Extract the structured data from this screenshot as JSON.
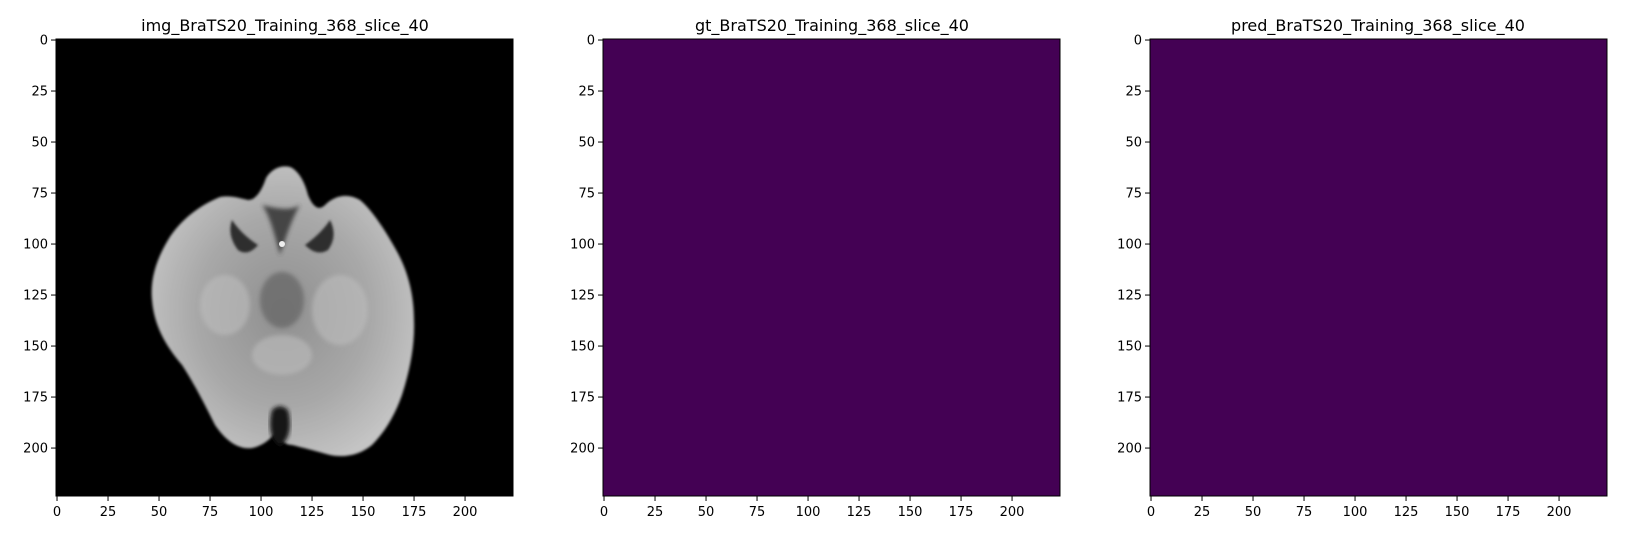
{
  "colors": {
    "background": "#ffffff",
    "mask_fill": "#440154",
    "image_fill": "#000000",
    "axis": "#000000"
  },
  "chart_data": [
    {
      "type": "heatmap",
      "title": "img_BraTS20_Training_368_slice_40",
      "colormap": "gray",
      "content": "grayscale axial brain MRI slice on black background",
      "xlim": [
        0,
        224
      ],
      "ylim": [
        224,
        0
      ],
      "xticks": [
        0,
        25,
        50,
        75,
        100,
        125,
        150,
        175,
        200
      ],
      "yticks": [
        0,
        25,
        50,
        75,
        100,
        125,
        150,
        175,
        200
      ],
      "xlabel": "",
      "ylabel": "",
      "grid": false
    },
    {
      "type": "heatmap",
      "title": "gt_BraTS20_Training_368_slice_40",
      "colormap": "viridis",
      "uniform_value": 0,
      "xlim": [
        0,
        224
      ],
      "ylim": [
        224,
        0
      ],
      "xticks": [
        0,
        25,
        50,
        75,
        100,
        125,
        150,
        175,
        200
      ],
      "yticks": [
        0,
        25,
        50,
        75,
        100,
        125,
        150,
        175,
        200
      ],
      "xlabel": "",
      "ylabel": "",
      "grid": false
    },
    {
      "type": "heatmap",
      "title": "pred_BraTS20_Training_368_slice_40",
      "colormap": "viridis",
      "uniform_value": 0,
      "xlim": [
        0,
        224
      ],
      "ylim": [
        224,
        0
      ],
      "xticks": [
        0,
        25,
        50,
        75,
        100,
        125,
        150,
        175,
        200
      ],
      "yticks": [
        0,
        25,
        50,
        75,
        100,
        125,
        150,
        175,
        200
      ],
      "xlabel": "",
      "ylabel": "",
      "grid": false
    }
  ]
}
